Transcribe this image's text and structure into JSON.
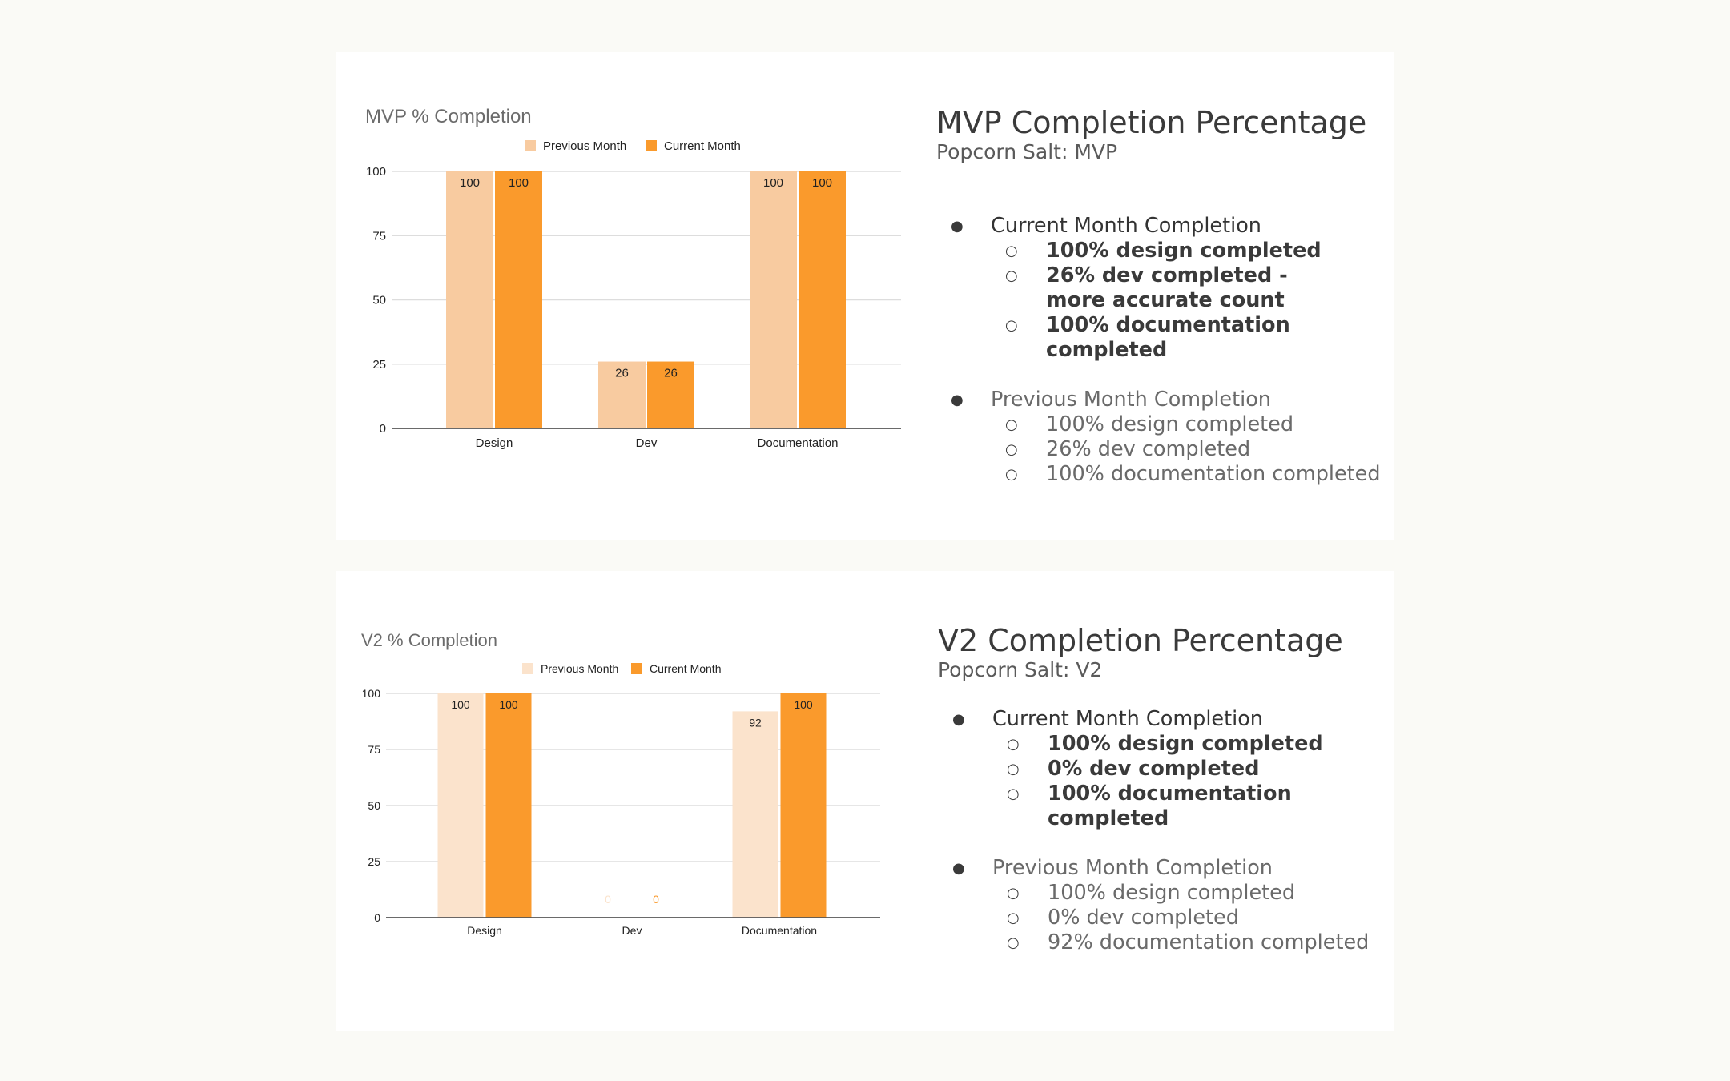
{
  "colors": {
    "previous_month": "#f8cba0",
    "previous_month_v2": "#fbe3cc",
    "current_month": "#fa9a2c",
    "gridline": "#dddddd",
    "axis": "#555555"
  },
  "chart_data": [
    {
      "type": "bar",
      "title": "MVP % Completion",
      "categories": [
        "Design",
        "Dev",
        "Documentation"
      ],
      "series": [
        {
          "name": "Previous Month",
          "values": [
            100,
            26,
            100
          ]
        },
        {
          "name": "Current Month",
          "values": [
            100,
            26,
            100
          ]
        }
      ],
      "yticks": [
        "0",
        "25",
        "50",
        "75",
        "100"
      ],
      "ylim": [
        0,
        100
      ],
      "grid": true,
      "legend": "top"
    },
    {
      "type": "bar",
      "title": "V2 % Completion",
      "categories": [
        "Design",
        "Dev",
        "Documentation"
      ],
      "series": [
        {
          "name": "Previous Month",
          "values": [
            100,
            0,
            92
          ]
        },
        {
          "name": "Current Month",
          "values": [
            100,
            0,
            100
          ]
        }
      ],
      "yticks": [
        "0",
        "25",
        "50",
        "75",
        "100"
      ],
      "ylim": [
        0,
        100
      ],
      "grid": true,
      "legend": "top"
    }
  ],
  "panels": [
    {
      "title": "MVP Completion Percentage",
      "subtitle": "Popcorn Salt: MVP",
      "current": {
        "heading": "Current Month Completion",
        "items": [
          "100% design completed",
          "26% dev completed - more accurate count",
          "100% documentation completed"
        ]
      },
      "previous": {
        "heading": "Previous Month Completion",
        "items": [
          "100% design completed",
          "26% dev completed",
          "100% documentation completed"
        ]
      }
    },
    {
      "title": "V2 Completion Percentage",
      "subtitle": "Popcorn Salt: V2",
      "current": {
        "heading": "Current Month Completion",
        "items": [
          "100% design completed",
          "0% dev completed",
          "100% documentation completed"
        ]
      },
      "previous": {
        "heading": "Previous Month Completion",
        "items": [
          "100% design completed",
          "0% dev completed",
          "92% documentation completed"
        ]
      }
    }
  ]
}
